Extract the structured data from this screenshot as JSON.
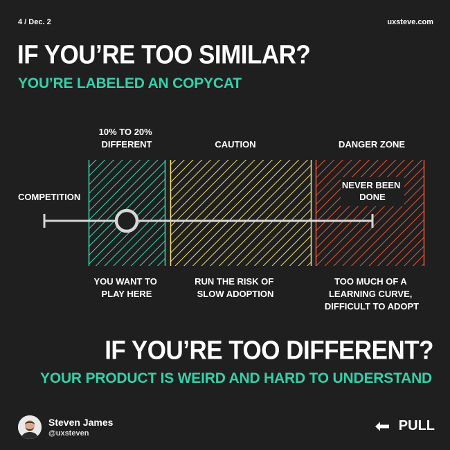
{
  "meta": {
    "page": "4 / Dec. 2",
    "site": "uxsteve.com"
  },
  "headline_top": "IF YOU’RE TOO SIMILAR?",
  "subline_top": "YOU’RE LABELED AN COPYCAT",
  "diagram": {
    "competition": "COMPETITION",
    "zones": [
      {
        "header": [
          "10% TO 20%",
          "DIFFERENT"
        ],
        "footer": [
          "YOU WANT TO",
          "PLAY HERE"
        ],
        "color": "#3ddbb6"
      },
      {
        "header": [
          "CAUTION"
        ],
        "footer": [
          "RUN THE RISK OF",
          "SLOW ADOPTION"
        ],
        "color": "#f2e07a"
      },
      {
        "header": [
          "DANGER ZONE"
        ],
        "footer": [
          "TOO MUCH OF A",
          "LEARNING CURVE,",
          "DIFFICULT TO ADOPT"
        ],
        "color": "#e8583a",
        "inner_label": [
          "NEVER BEEN",
          "DONE"
        ]
      }
    ]
  },
  "headline_bottom": "IF YOU’RE TOO DIFFERENT?",
  "subline_bottom": "YOUR PRODUCT IS WEIRD AND HARD TO UNDERSTAND",
  "author": {
    "name": "Steven James",
    "handle": "@uxsteven"
  },
  "cta": {
    "label": "PULL",
    "icon": "arrow-left-icon"
  },
  "colors": {
    "accent": "#34d1aa",
    "background": "#1f1f1f"
  }
}
